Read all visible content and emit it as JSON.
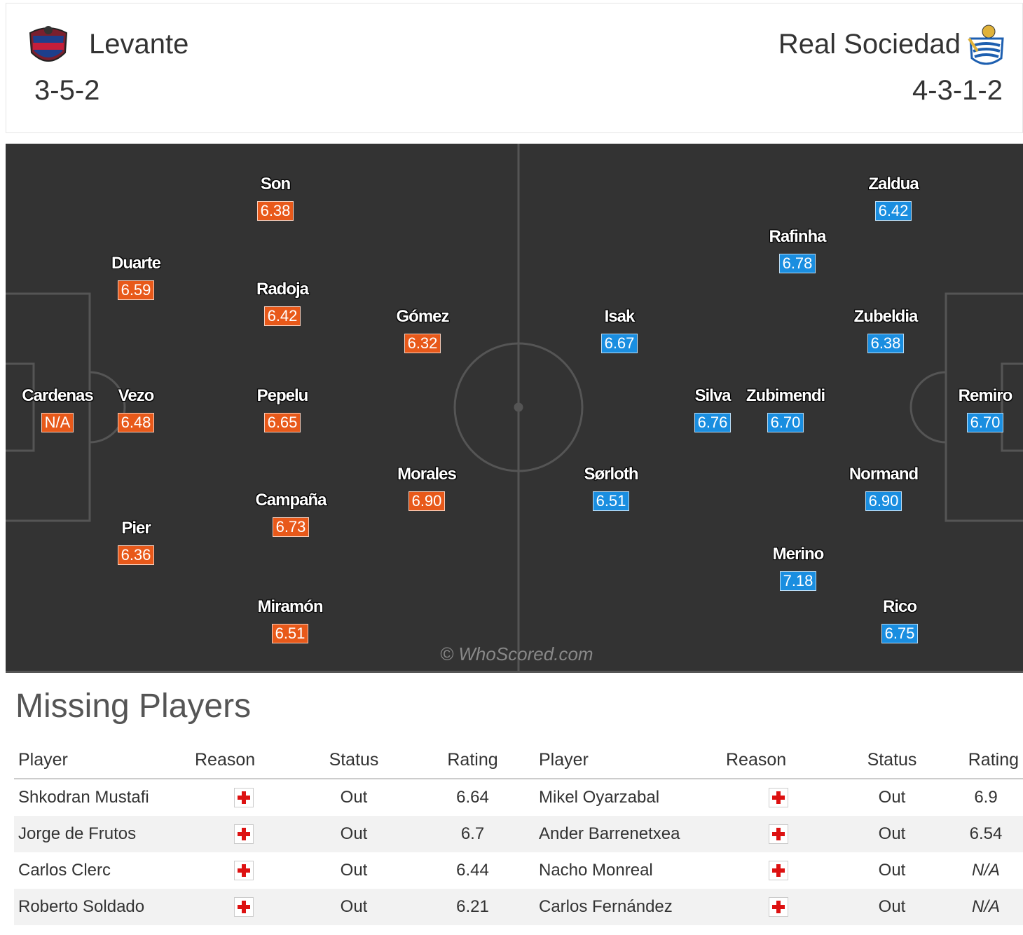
{
  "header": {
    "home": {
      "name": "Levante",
      "formation": "3-5-2",
      "crest": "levante-crest-icon"
    },
    "away": {
      "name": "Real Sociedad",
      "formation": "4-3-1-2",
      "crest": "real-sociedad-crest-icon"
    }
  },
  "colors": {
    "home_rating": "#e8591a",
    "away_rating": "#1a8ee0",
    "pitch": "#333333"
  },
  "pitch": {
    "watermark": "© WhoScored.com",
    "home_players": [
      {
        "name": "Son",
        "rating": "6.38"
      },
      {
        "name": "Duarte",
        "rating": "6.59"
      },
      {
        "name": "Radoja",
        "rating": "6.42"
      },
      {
        "name": "Gómez",
        "rating": "6.32"
      },
      {
        "name": "Cardenas",
        "rating": "N/A"
      },
      {
        "name": "Vezo",
        "rating": "6.48"
      },
      {
        "name": "Pepelu",
        "rating": "6.65"
      },
      {
        "name": "Morales",
        "rating": "6.90"
      },
      {
        "name": "Campaña",
        "rating": "6.73"
      },
      {
        "name": "Pier",
        "rating": "6.36"
      },
      {
        "name": "Miramón",
        "rating": "6.51"
      }
    ],
    "away_players": [
      {
        "name": "Zaldua",
        "rating": "6.42"
      },
      {
        "name": "Rafinha",
        "rating": "6.78"
      },
      {
        "name": "Isak",
        "rating": "6.67"
      },
      {
        "name": "Zubeldia",
        "rating": "6.38"
      },
      {
        "name": "Silva",
        "rating": "6.76"
      },
      {
        "name": "Zubimendi",
        "rating": "6.70"
      },
      {
        "name": "Remiro",
        "rating": "6.70"
      },
      {
        "name": "Sørloth",
        "rating": "6.51"
      },
      {
        "name": "Normand",
        "rating": "6.90"
      },
      {
        "name": "Merino",
        "rating": "7.18"
      },
      {
        "name": "Rico",
        "rating": "6.75"
      }
    ]
  },
  "missing": {
    "title": "Missing Players",
    "headers": [
      "Player",
      "Reason",
      "Status",
      "Rating",
      "Player",
      "Reason",
      "Status",
      "Rating"
    ],
    "reason_icon": "injury-icon",
    "rows": [
      {
        "home_player": "Shkodran Mustafi",
        "home_status": "Out",
        "home_rating": "6.64",
        "away_player": "Mikel Oyarzabal",
        "away_status": "Out",
        "away_rating": "6.9"
      },
      {
        "home_player": "Jorge de Frutos",
        "home_status": "Out",
        "home_rating": "6.7",
        "away_player": "Ander Barrenetxea",
        "away_status": "Out",
        "away_rating": "6.54"
      },
      {
        "home_player": "Carlos Clerc",
        "home_status": "Out",
        "home_rating": "6.44",
        "away_player": "Nacho Monreal",
        "away_status": "Out",
        "away_rating": "N/A"
      },
      {
        "home_player": "Roberto Soldado",
        "home_status": "Out",
        "home_rating": "6.21",
        "away_player": "Carlos Fernández",
        "away_status": "Out",
        "away_rating": "N/A"
      }
    ]
  }
}
